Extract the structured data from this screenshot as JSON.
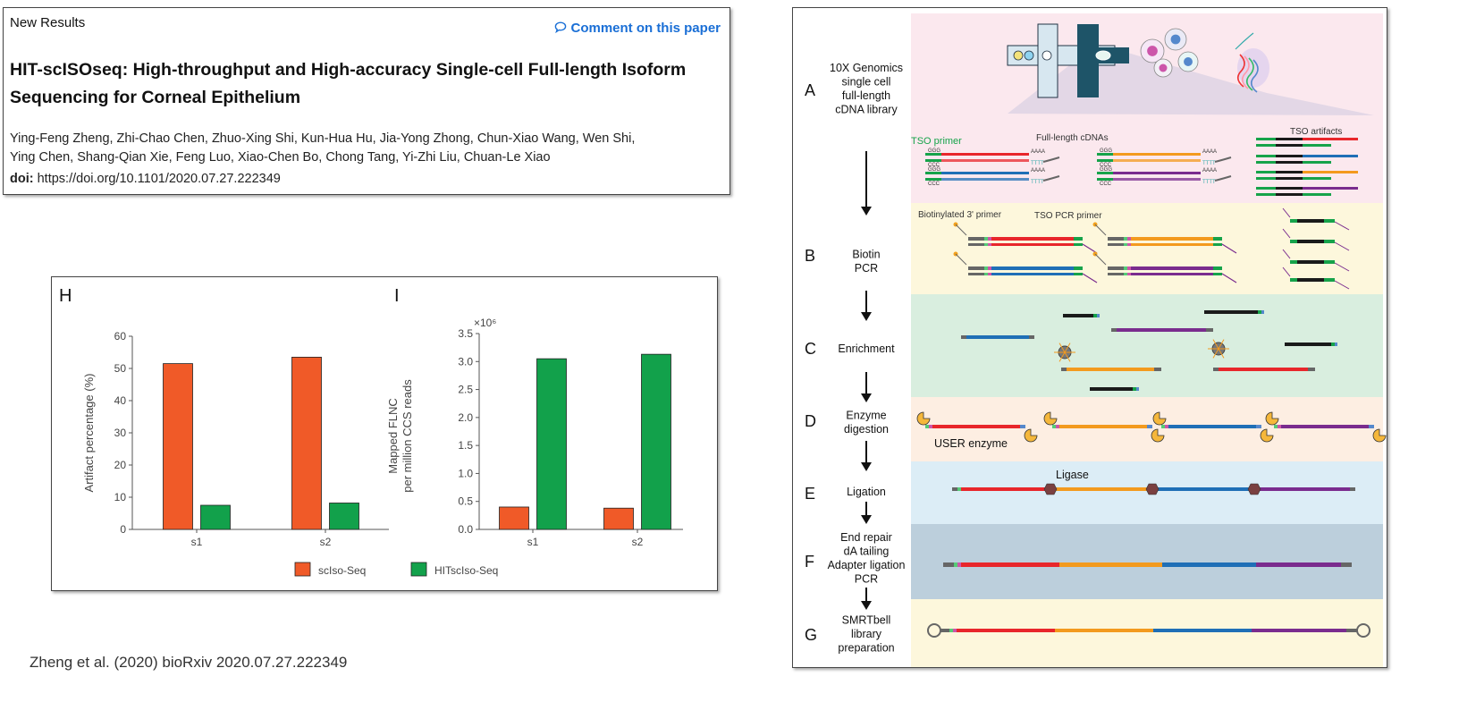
{
  "paper": {
    "status": "New Results",
    "comment_link": "Comment on this paper",
    "title": "HIT-scISOseq: High-throughput and High-accuracy Single-cell Full-length Isoform Sequencing for Corneal Epithelium",
    "authors_line1": "Ying-Feng Zheng, Zhi-Chao Chen, Zhuo-Xing Shi, Kun-Hua Hu, Jia-Yong Zhong, Chun-Xiao Wang, Wen Shi,",
    "authors_line2": "Ying Chen, Shang-Qian Xie, Feng Luo, Xiao-Chen Bo, Chong Tang, Yi-Zhi Liu, Chuan-Le Xiao",
    "doi_label": "doi:",
    "doi_value": "https://doi.org/10.1101/2020.07.27.222349"
  },
  "citation": "Zheng et al. (2020) bioRxiv 2020.07.27.222349",
  "colors": {
    "sciso": "#f05a28",
    "hit": "#12a14b",
    "link": "#1a6fd6"
  },
  "chart_data": [
    {
      "type": "bar",
      "panel": "H",
      "categories": [
        "s1",
        "s2"
      ],
      "ylabel": "Artifact percentage (%)",
      "ylim": [
        0,
        60
      ],
      "yticks": [
        0,
        10,
        20,
        30,
        40,
        50,
        60
      ],
      "series": [
        {
          "name": "scIso-Seq",
          "color": "#f05a28",
          "values": [
            51.5,
            53.5
          ]
        },
        {
          "name": "HITscIso-Seq",
          "color": "#12a14b",
          "values": [
            7.5,
            8.2
          ]
        }
      ]
    },
    {
      "type": "bar",
      "panel": "I",
      "categories": [
        "s1",
        "s2"
      ],
      "ylabel_line1": "Mapped FLNC",
      "ylabel_line2": "per million CCS reads",
      "multiplier": "×10⁶",
      "ylim": [
        0,
        3.5
      ],
      "yticks": [
        "0.0",
        "0.5",
        "1.0",
        "1.5",
        "2.0",
        "2.5",
        "3.0",
        "3.5"
      ],
      "series": [
        {
          "name": "scIso-Seq",
          "color": "#f05a28",
          "values": [
            0.4,
            0.38
          ]
        },
        {
          "name": "HITscIso-Seq",
          "color": "#12a14b",
          "values": [
            3.05,
            3.13
          ]
        }
      ]
    }
  ],
  "legend": {
    "items": [
      "scIso-Seq",
      "HITscIso-Seq"
    ]
  },
  "diagram": {
    "steps": [
      {
        "letter": "A",
        "lines": [
          "10X Genomics",
          "single cell",
          "full-length",
          "cDNA library"
        ],
        "bg": "#fbe8ee"
      },
      {
        "letter": "B",
        "lines": [
          "Biotin",
          "PCR"
        ],
        "bg": "#fdf7dc"
      },
      {
        "letter": "C",
        "lines": [
          "Enrichment"
        ],
        "bg": "#d9eedf"
      },
      {
        "letter": "D",
        "lines": [
          "Enzyme",
          "digestion"
        ],
        "bg": "#fdeee2"
      },
      {
        "letter": "E",
        "lines": [
          "Ligation"
        ],
        "bg": "#dcedf6"
      },
      {
        "letter": "F",
        "lines": [
          "End repair",
          "dA tailing",
          "Adapter ligation",
          "PCR"
        ],
        "bg": "#bccfdc"
      },
      {
        "letter": "G",
        "lines": [
          "SMRTbell",
          "library",
          "preparation"
        ],
        "bg": "#fdf7dc"
      }
    ],
    "labels": {
      "tso_primer": "TSO primer",
      "full_length": "Full-length cDNAs",
      "tso_artifacts": "TSO artifacts",
      "biotin_primer": "Biotinylated 3' primer",
      "tso_pcr": "TSO PCR primer",
      "user_enzyme": "USER enzyme",
      "ligase": "Ligase",
      "ggg": "GGG",
      "ccc": "CCC",
      "aaaa": "AAAA",
      "tttt": "TTTT"
    }
  }
}
